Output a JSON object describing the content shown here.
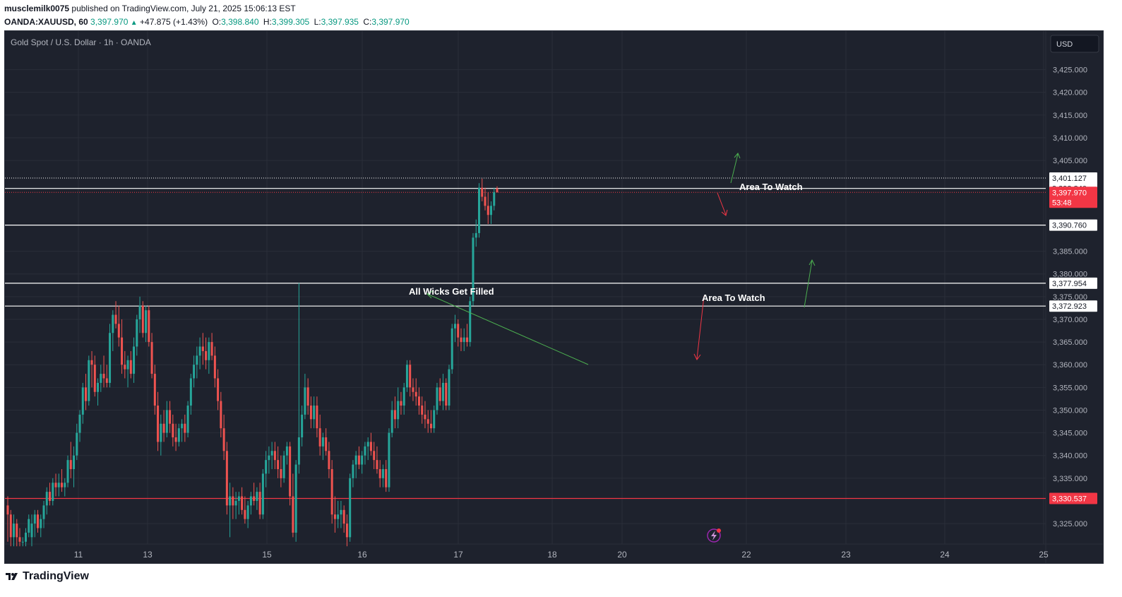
{
  "header": {
    "line1_user": "musclemilk0075",
    "line1_rest": "published on TradingView.com, July 21, 2025 15:06:13 EST",
    "symbol": "OANDA:XAUUSD, 60",
    "last": "3,397.970",
    "change": "+47.875 (+1.43%)",
    "o_label": "O:",
    "o_value": "3,398.840",
    "h_label": "H:",
    "h_value": "3,399.305",
    "l_label": "L:",
    "l_value": "3,397.935",
    "c_label": "C:",
    "c_value": "3,397.970"
  },
  "legend": {
    "title": "Gold Spot / U.S. Dollar · 1h · OANDA"
  },
  "currency_button": "USD",
  "footer": {
    "brand": "TradingView"
  },
  "colors": {
    "up": "#26a69a",
    "down": "#ef5350",
    "background": "#1e222d",
    "grid": "#2a2e39",
    "text": "#b2b5be"
  },
  "chart_data": {
    "type": "candlestick",
    "title": "Gold Spot / U.S. Dollar · 1h · OANDA",
    "timeframe": "1h",
    "x_tick_labels": [
      "11",
      "13",
      "15",
      "16",
      "17",
      "18",
      "20",
      "22",
      "23",
      "24",
      "25"
    ],
    "y_tick_labels": [
      "3,425.000",
      "3,420.000",
      "3,415.000",
      "3,410.000",
      "3,405.000",
      "3,385.000",
      "3,380.000",
      "3,375.000",
      "3,370.000",
      "3,365.000",
      "3,360.000",
      "3,355.000",
      "3,350.000",
      "3,345.000",
      "3,340.000",
      "3,335.000",
      "3,325.000"
    ],
    "y_ticks": [
      3425,
      3420,
      3415,
      3410,
      3405,
      3385,
      3380,
      3375,
      3370,
      3365,
      3360,
      3355,
      3350,
      3345,
      3340,
      3335,
      3325
    ],
    "ylim": [
      3320.5,
      3433.5
    ],
    "grid": true,
    "last_price": {
      "value": 3397.97,
      "label": "3,397.970",
      "countdown": "53:48"
    },
    "levels": [
      {
        "label": "3,401.127",
        "value": 3401.127,
        "style": "dotted"
      },
      {
        "label": "3,398.840",
        "value": 3398.84,
        "style": "solid"
      },
      {
        "label": "3,390.760",
        "value": 3390.76,
        "style": "solid"
      },
      {
        "label": "3,377.954",
        "value": 3377.954,
        "style": "solid"
      },
      {
        "label": "3,372.923",
        "value": 3372.923,
        "style": "solid"
      },
      {
        "label": "3,330.537",
        "value": 3330.537,
        "style": "solid-red"
      }
    ],
    "annotations": [
      {
        "text": "All Wicks Get Filled"
      },
      {
        "text": "Area To Watch"
      },
      {
        "text": "Area To Watch"
      }
    ],
    "candles": [
      {
        "o": 3329,
        "h": 3331,
        "l": 3321,
        "c": 3327
      },
      {
        "o": 3327,
        "h": 3328,
        "l": 3320,
        "c": 3322
      },
      {
        "o": 3322,
        "h": 3327,
        "l": 3320,
        "c": 3325
      },
      {
        "o": 3325,
        "h": 3326,
        "l": 3320,
        "c": 3322
      },
      {
        "o": 3322,
        "h": 3324,
        "l": 3320,
        "c": 3321
      },
      {
        "o": 3321,
        "h": 3322,
        "l": 3320,
        "c": 3321
      },
      {
        "o": 3321,
        "h": 3324,
        "l": 3320,
        "c": 3323
      },
      {
        "o": 3323,
        "h": 3327,
        "l": 3322,
        "c": 3326
      },
      {
        "o": 3322,
        "h": 3327,
        "l": 3320,
        "c": 3325
      },
      {
        "o": 3325,
        "h": 3328,
        "l": 3322,
        "c": 3327
      },
      {
        "o": 3327,
        "h": 3328,
        "l": 3323,
        "c": 3324
      },
      {
        "o": 3324,
        "h": 3327,
        "l": 3322,
        "c": 3326
      },
      {
        "o": 3326,
        "h": 3330,
        "l": 3324,
        "c": 3329
      },
      {
        "o": 3329,
        "h": 3333,
        "l": 3327,
        "c": 3332
      },
      {
        "o": 3332,
        "h": 3334,
        "l": 3329,
        "c": 3330
      },
      {
        "o": 3330,
        "h": 3335,
        "l": 3329,
        "c": 3334
      },
      {
        "o": 3334,
        "h": 3336,
        "l": 3331,
        "c": 3333
      },
      {
        "o": 3333,
        "h": 3336,
        "l": 3331,
        "c": 3334
      },
      {
        "o": 3334,
        "h": 3337,
        "l": 3332,
        "c": 3333
      },
      {
        "o": 3333,
        "h": 3335,
        "l": 3331,
        "c": 3334
      },
      {
        "o": 3334,
        "h": 3340,
        "l": 3333,
        "c": 3339
      },
      {
        "o": 3339,
        "h": 3343,
        "l": 3335,
        "c": 3337
      },
      {
        "o": 3337,
        "h": 3342,
        "l": 3333,
        "c": 3340
      },
      {
        "o": 3340,
        "h": 3347,
        "l": 3339,
        "c": 3345
      },
      {
        "o": 3345,
        "h": 3350,
        "l": 3343,
        "c": 3349
      },
      {
        "o": 3349,
        "h": 3356,
        "l": 3347,
        "c": 3355
      },
      {
        "o": 3355,
        "h": 3358,
        "l": 3350,
        "c": 3352
      },
      {
        "o": 3352,
        "h": 3362,
        "l": 3351,
        "c": 3361
      },
      {
        "o": 3361,
        "h": 3363,
        "l": 3355,
        "c": 3360
      },
      {
        "o": 3360,
        "h": 3362,
        "l": 3353,
        "c": 3354
      },
      {
        "o": 3354,
        "h": 3357,
        "l": 3351,
        "c": 3356
      },
      {
        "o": 3356,
        "h": 3360,
        "l": 3354,
        "c": 3358
      },
      {
        "o": 3358,
        "h": 3362,
        "l": 3355,
        "c": 3357
      },
      {
        "o": 3357,
        "h": 3360,
        "l": 3355,
        "c": 3356
      },
      {
        "o": 3356,
        "h": 3369,
        "l": 3355,
        "c": 3367
      },
      {
        "o": 3367,
        "h": 3372,
        "l": 3363,
        "c": 3371
      },
      {
        "o": 3371,
        "h": 3374,
        "l": 3368,
        "c": 3369
      },
      {
        "o": 3369,
        "h": 3373,
        "l": 3364,
        "c": 3366
      },
      {
        "o": 3366,
        "h": 3370,
        "l": 3358,
        "c": 3360
      },
      {
        "o": 3360,
        "h": 3363,
        "l": 3357,
        "c": 3359
      },
      {
        "o": 3359,
        "h": 3362,
        "l": 3355,
        "c": 3361
      },
      {
        "o": 3361,
        "h": 3363,
        "l": 3357,
        "c": 3358
      },
      {
        "o": 3358,
        "h": 3366,
        "l": 3356,
        "c": 3364
      },
      {
        "o": 3364,
        "h": 3371,
        "l": 3362,
        "c": 3370
      },
      {
        "o": 3370,
        "h": 3375,
        "l": 3367,
        "c": 3373
      },
      {
        "o": 3373,
        "h": 3374,
        "l": 3366,
        "c": 3367
      },
      {
        "o": 3367,
        "h": 3373,
        "l": 3365,
        "c": 3372
      },
      {
        "o": 3372,
        "h": 3373,
        "l": 3364,
        "c": 3365
      },
      {
        "o": 3365,
        "h": 3367,
        "l": 3357,
        "c": 3358
      },
      {
        "o": 3358,
        "h": 3360,
        "l": 3349,
        "c": 3351
      },
      {
        "o": 3351,
        "h": 3354,
        "l": 3341,
        "c": 3343
      },
      {
        "o": 3343,
        "h": 3349,
        "l": 3340,
        "c": 3347
      },
      {
        "o": 3347,
        "h": 3350,
        "l": 3343,
        "c": 3345
      },
      {
        "o": 3345,
        "h": 3352,
        "l": 3344,
        "c": 3350
      },
      {
        "o": 3350,
        "h": 3352,
        "l": 3345,
        "c": 3347
      },
      {
        "o": 3347,
        "h": 3349,
        "l": 3342,
        "c": 3344
      },
      {
        "o": 3344,
        "h": 3347,
        "l": 3341,
        "c": 3343
      },
      {
        "o": 3343,
        "h": 3347,
        "l": 3342,
        "c": 3346
      },
      {
        "o": 3346,
        "h": 3348,
        "l": 3343,
        "c": 3347
      },
      {
        "o": 3347,
        "h": 3349,
        "l": 3343,
        "c": 3345
      },
      {
        "o": 3345,
        "h": 3352,
        "l": 3344,
        "c": 3351
      },
      {
        "o": 3351,
        "h": 3358,
        "l": 3349,
        "c": 3357
      },
      {
        "o": 3357,
        "h": 3362,
        "l": 3355,
        "c": 3360
      },
      {
        "o": 3360,
        "h": 3364,
        "l": 3357,
        "c": 3362
      },
      {
        "o": 3362,
        "h": 3366,
        "l": 3359,
        "c": 3364
      },
      {
        "o": 3364,
        "h": 3367,
        "l": 3360,
        "c": 3363
      },
      {
        "o": 3363,
        "h": 3366,
        "l": 3359,
        "c": 3361
      },
      {
        "o": 3361,
        "h": 3366,
        "l": 3358,
        "c": 3365
      },
      {
        "o": 3365,
        "h": 3367,
        "l": 3361,
        "c": 3362
      },
      {
        "o": 3362,
        "h": 3364,
        "l": 3355,
        "c": 3357
      },
      {
        "o": 3357,
        "h": 3359,
        "l": 3350,
        "c": 3352
      },
      {
        "o": 3352,
        "h": 3354,
        "l": 3344,
        "c": 3346
      },
      {
        "o": 3346,
        "h": 3349,
        "l": 3339,
        "c": 3341
      },
      {
        "o": 3341,
        "h": 3343,
        "l": 3327,
        "c": 3329
      },
      {
        "o": 3329,
        "h": 3334,
        "l": 3322,
        "c": 3331
      },
      {
        "o": 3331,
        "h": 3333,
        "l": 3326,
        "c": 3329
      },
      {
        "o": 3329,
        "h": 3332,
        "l": 3326,
        "c": 3330
      },
      {
        "o": 3330,
        "h": 3332,
        "l": 3327,
        "c": 3331
      },
      {
        "o": 3331,
        "h": 3333,
        "l": 3327,
        "c": 3328
      },
      {
        "o": 3328,
        "h": 3331,
        "l": 3325,
        "c": 3326
      },
      {
        "o": 3326,
        "h": 3330,
        "l": 3324,
        "c": 3329
      },
      {
        "o": 3329,
        "h": 3332,
        "l": 3327,
        "c": 3331
      },
      {
        "o": 3331,
        "h": 3334,
        "l": 3329,
        "c": 3330
      },
      {
        "o": 3330,
        "h": 3333,
        "l": 3328,
        "c": 3332
      },
      {
        "o": 3332,
        "h": 3334,
        "l": 3326,
        "c": 3327
      },
      {
        "o": 3327,
        "h": 3337,
        "l": 3326,
        "c": 3336
      },
      {
        "o": 3336,
        "h": 3341,
        "l": 3333,
        "c": 3339
      },
      {
        "o": 3339,
        "h": 3342,
        "l": 3336,
        "c": 3340
      },
      {
        "o": 3340,
        "h": 3343,
        "l": 3337,
        "c": 3341
      },
      {
        "o": 3341,
        "h": 3343,
        "l": 3337,
        "c": 3339
      },
      {
        "o": 3339,
        "h": 3342,
        "l": 3335,
        "c": 3337
      },
      {
        "o": 3337,
        "h": 3340,
        "l": 3333,
        "c": 3335
      },
      {
        "o": 3335,
        "h": 3341,
        "l": 3334,
        "c": 3340
      },
      {
        "o": 3340,
        "h": 3343,
        "l": 3338,
        "c": 3342
      },
      {
        "o": 3342,
        "h": 3343,
        "l": 3329,
        "c": 3331
      },
      {
        "o": 3331,
        "h": 3336,
        "l": 3322,
        "c": 3323
      },
      {
        "o": 3323,
        "h": 3339,
        "l": 3321,
        "c": 3338
      },
      {
        "o": 3338,
        "h": 3378,
        "l": 3336,
        "c": 3344
      },
      {
        "o": 3344,
        "h": 3351,
        "l": 3342,
        "c": 3349
      },
      {
        "o": 3349,
        "h": 3358,
        "l": 3348,
        "c": 3355
      },
      {
        "o": 3355,
        "h": 3357,
        "l": 3349,
        "c": 3351
      },
      {
        "o": 3351,
        "h": 3353,
        "l": 3346,
        "c": 3348
      },
      {
        "o": 3348,
        "h": 3353,
        "l": 3346,
        "c": 3351
      },
      {
        "o": 3351,
        "h": 3353,
        "l": 3344,
        "c": 3346
      },
      {
        "o": 3346,
        "h": 3349,
        "l": 3340,
        "c": 3342
      },
      {
        "o": 3342,
        "h": 3345,
        "l": 3339,
        "c": 3344
      },
      {
        "o": 3344,
        "h": 3346,
        "l": 3340,
        "c": 3341
      },
      {
        "o": 3341,
        "h": 3343,
        "l": 3335,
        "c": 3337
      },
      {
        "o": 3337,
        "h": 3339,
        "l": 3325,
        "c": 3327
      },
      {
        "o": 3327,
        "h": 3331,
        "l": 3323,
        "c": 3326
      },
      {
        "o": 3326,
        "h": 3330,
        "l": 3324,
        "c": 3327
      },
      {
        "o": 3327,
        "h": 3330,
        "l": 3324,
        "c": 3328
      },
      {
        "o": 3328,
        "h": 3329,
        "l": 3323,
        "c": 3325
      },
      {
        "o": 3325,
        "h": 3327,
        "l": 3320,
        "c": 3322
      },
      {
        "o": 3322,
        "h": 3336,
        "l": 3321,
        "c": 3335
      },
      {
        "o": 3335,
        "h": 3339,
        "l": 3333,
        "c": 3338
      },
      {
        "o": 3338,
        "h": 3341,
        "l": 3335,
        "c": 3340
      },
      {
        "o": 3340,
        "h": 3342,
        "l": 3337,
        "c": 3338
      },
      {
        "o": 3338,
        "h": 3341,
        "l": 3336,
        "c": 3340
      },
      {
        "o": 3340,
        "h": 3343,
        "l": 3338,
        "c": 3342
      },
      {
        "o": 3342,
        "h": 3344,
        "l": 3339,
        "c": 3343
      },
      {
        "o": 3343,
        "h": 3345,
        "l": 3340,
        "c": 3341
      },
      {
        "o": 3341,
        "h": 3343,
        "l": 3337,
        "c": 3339
      },
      {
        "o": 3339,
        "h": 3342,
        "l": 3336,
        "c": 3337
      },
      {
        "o": 3337,
        "h": 3339,
        "l": 3333,
        "c": 3335
      },
      {
        "o": 3335,
        "h": 3338,
        "l": 3333,
        "c": 3337
      },
      {
        "o": 3337,
        "h": 3339,
        "l": 3332,
        "c": 3333
      },
      {
        "o": 3333,
        "h": 3346,
        "l": 3332,
        "c": 3345
      },
      {
        "o": 3345,
        "h": 3352,
        "l": 3344,
        "c": 3350
      },
      {
        "o": 3350,
        "h": 3353,
        "l": 3346,
        "c": 3348
      },
      {
        "o": 3348,
        "h": 3355,
        "l": 3346,
        "c": 3352
      },
      {
        "o": 3352,
        "h": 3354,
        "l": 3349,
        "c": 3351
      },
      {
        "o": 3351,
        "h": 3356,
        "l": 3349,
        "c": 3355
      },
      {
        "o": 3355,
        "h": 3361,
        "l": 3354,
        "c": 3360
      },
      {
        "o": 3360,
        "h": 3361,
        "l": 3353,
        "c": 3355
      },
      {
        "o": 3355,
        "h": 3357,
        "l": 3352,
        "c": 3354
      },
      {
        "o": 3354,
        "h": 3357,
        "l": 3351,
        "c": 3353
      },
      {
        "o": 3353,
        "h": 3355,
        "l": 3349,
        "c": 3351
      },
      {
        "o": 3351,
        "h": 3353,
        "l": 3347,
        "c": 3349
      },
      {
        "o": 3349,
        "h": 3352,
        "l": 3346,
        "c": 3348
      },
      {
        "o": 3348,
        "h": 3350,
        "l": 3345,
        "c": 3347
      },
      {
        "o": 3347,
        "h": 3350,
        "l": 3345,
        "c": 3346
      },
      {
        "o": 3346,
        "h": 3351,
        "l": 3345,
        "c": 3350
      },
      {
        "o": 3350,
        "h": 3356,
        "l": 3349,
        "c": 3355
      },
      {
        "o": 3355,
        "h": 3357,
        "l": 3351,
        "c": 3352
      },
      {
        "o": 3352,
        "h": 3358,
        "l": 3350,
        "c": 3356
      },
      {
        "o": 3356,
        "h": 3357,
        "l": 3350,
        "c": 3351
      },
      {
        "o": 3351,
        "h": 3360,
        "l": 3350,
        "c": 3359
      },
      {
        "o": 3359,
        "h": 3369,
        "l": 3358,
        "c": 3368
      },
      {
        "o": 3368,
        "h": 3371,
        "l": 3365,
        "c": 3369
      },
      {
        "o": 3369,
        "h": 3370,
        "l": 3364,
        "c": 3366
      },
      {
        "o": 3366,
        "h": 3368,
        "l": 3363,
        "c": 3365
      },
      {
        "o": 3365,
        "h": 3368,
        "l": 3363,
        "c": 3366
      },
      {
        "o": 3366,
        "h": 3369,
        "l": 3364,
        "c": 3365
      },
      {
        "o": 3365,
        "h": 3375,
        "l": 3364,
        "c": 3374
      },
      {
        "o": 3374,
        "h": 3389,
        "l": 3373,
        "c": 3388
      },
      {
        "o": 3388,
        "h": 3392,
        "l": 3386,
        "c": 3389
      },
      {
        "o": 3389,
        "h": 3400,
        "l": 3388,
        "c": 3399
      },
      {
        "o": 3399,
        "h": 3401,
        "l": 3396,
        "c": 3397
      },
      {
        "o": 3397,
        "h": 3399,
        "l": 3394,
        "c": 3395
      },
      {
        "o": 3395,
        "h": 3398,
        "l": 3391,
        "c": 3393
      },
      {
        "o": 3393,
        "h": 3396,
        "l": 3391,
        "c": 3395
      },
      {
        "o": 3395,
        "h": 3399,
        "l": 3394,
        "c": 3398
      },
      {
        "o": 3398.84,
        "h": 3399.305,
        "l": 3397.935,
        "c": 3397.97
      }
    ]
  }
}
